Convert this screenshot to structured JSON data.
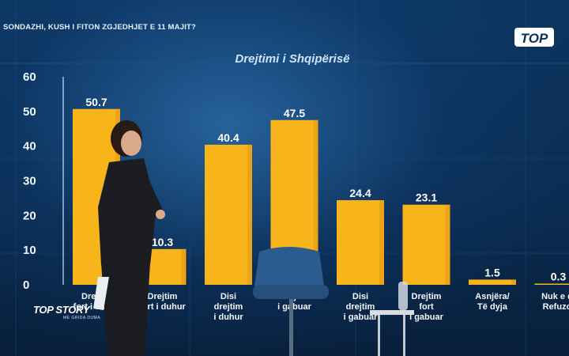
{
  "headline": "SONDAZHI, KUSH I FITON ZGJEDHJET E 11 MAJIT?",
  "logo_text": "TOP",
  "show": {
    "brand": "TOP STORY",
    "sub": "ME GRIDA DUMA"
  },
  "colors": {
    "bar": "#f7b51b",
    "bar_shade": "#e59a10",
    "axis_text": "#f2f6fb",
    "background": "#0b2f55"
  },
  "chart_data": {
    "type": "bar",
    "title": "Drejtimi i Shqipërisë",
    "xlabel": "",
    "ylabel": "",
    "ylim": [
      0,
      60
    ],
    "yticks": [
      "0",
      "10",
      "20",
      "30",
      "40",
      "50",
      "60"
    ],
    "grid": false,
    "legend": "none",
    "categories": [
      [
        "Drejtim",
        "fort i duhur"
      ],
      [
        "Drejtim",
        "fort i duhur"
      ],
      [
        "Disi",
        "drejtim",
        "i duhur"
      ],
      [
        "Drejtim",
        "i gabuar"
      ],
      [
        "Disi",
        "drejtim",
        "i gabuar"
      ],
      [
        "Drejtim",
        "fort",
        "i gabuar"
      ],
      [
        "Asnjëra/",
        "Të dyja"
      ],
      [
        "Nuk e di",
        "Refuzoj"
      ]
    ],
    "values": [
      50.7,
      10.3,
      40.4,
      47.5,
      24.4,
      23.1,
      1.5,
      0.3
    ],
    "value_labels": [
      "50.7",
      "10.3",
      "40.4",
      "47.5",
      "24.4",
      "23.1",
      "1.5",
      "0.3"
    ]
  }
}
